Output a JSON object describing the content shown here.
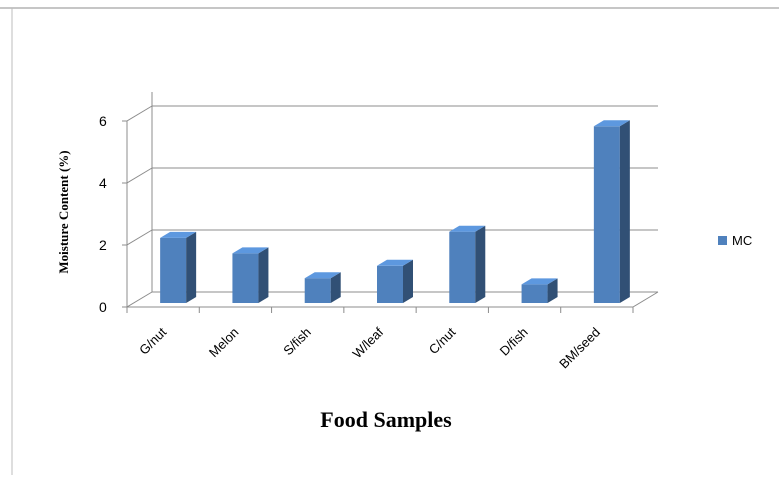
{
  "chart_data": {
    "type": "bar",
    "categories": [
      "G/nut",
      "Melon",
      "S/fish",
      "W/leaf",
      "C/nut",
      "D/fish",
      "BM/seed"
    ],
    "series": [
      {
        "name": "MC",
        "values": [
          2.1,
          1.6,
          0.8,
          1.2,
          2.3,
          0.6,
          5.7
        ],
        "color": "#4F81BD"
      }
    ],
    "xlabel": "Food Samples",
    "ylabel": "Moisture Content (%)",
    "ylim": [
      0,
      6
    ],
    "yticks": [
      "0",
      "2",
      "4",
      "6"
    ],
    "grid": true,
    "legend": "right",
    "style": "3d-column"
  }
}
